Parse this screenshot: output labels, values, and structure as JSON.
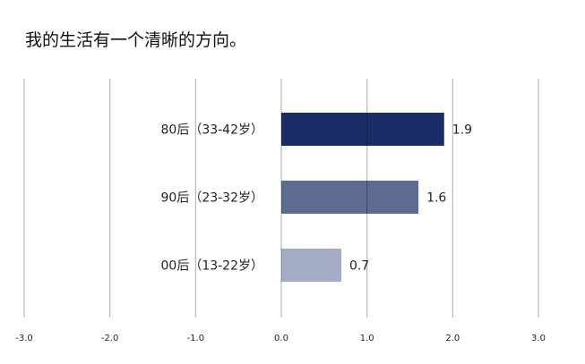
{
  "chart_data": {
    "type": "bar",
    "orientation": "horizontal",
    "title": "我的生活有一个清晰的方向。",
    "categories": [
      "80后（33-42岁）",
      "90后（23-32岁）",
      "00后（13-22岁）"
    ],
    "values": [
      1.9,
      1.6,
      0.7
    ],
    "value_labels": [
      "1.9",
      "1.6",
      "0.7"
    ],
    "colors": [
      "#1b2d66",
      "#5d6b93",
      "#a3abc5"
    ],
    "xlim": [
      -3.0,
      3.0
    ],
    "xticks": [
      -3.0,
      -2.0,
      -1.0,
      0.0,
      1.0,
      2.0,
      3.0
    ],
    "xtick_labels": [
      "-3.0",
      "-2.0",
      "-1.0",
      "0.0",
      "1.0",
      "2.0",
      "3.0"
    ],
    "grid": true,
    "xlabel": "",
    "ylabel": ""
  }
}
